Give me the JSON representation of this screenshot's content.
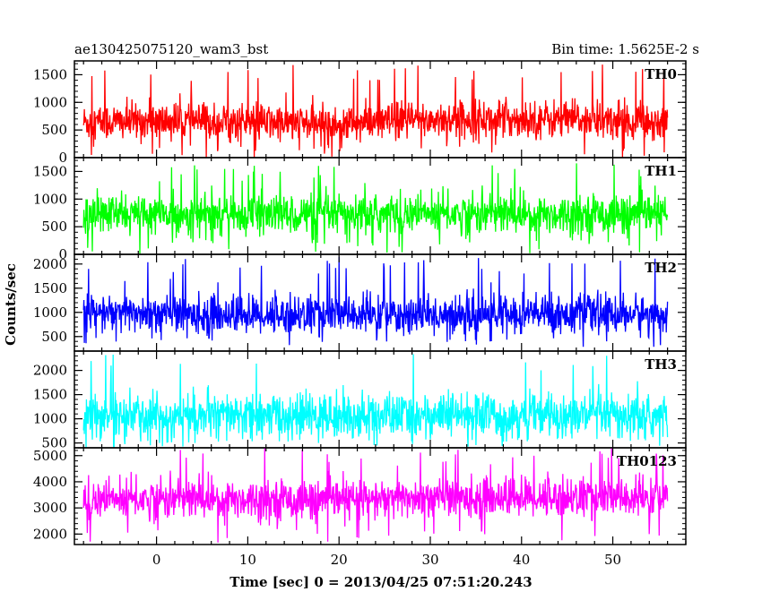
{
  "chart_data": {
    "type": "line",
    "title": "ae130425075120_wam3_bst",
    "subtitle": "Bin time: 1.5625E-2 s",
    "xlabel": "Time [sec] 0 = 2013/04/25 07:51:20.243",
    "ylabel": "Counts/sec",
    "xlim": [
      -9,
      58
    ],
    "xticks": [
      0,
      10,
      20,
      30,
      40,
      50
    ],
    "data_x_range": [
      -8,
      56
    ],
    "grid": false,
    "panels": [
      {
        "name": "TH0",
        "color": "#ff0000",
        "ylim": [
          0,
          1750
        ],
        "yticks": [
          0,
          500,
          1000,
          1500
        ],
        "baseline": 650,
        "noise": 170,
        "spike_max": 1700,
        "dip_min": 0,
        "vmin": 0,
        "vmax": 1750,
        "levels": [
          [
            -8,
            640
          ],
          [
            0,
            660
          ],
          [
            10,
            640
          ],
          [
            20,
            600
          ],
          [
            30,
            690
          ],
          [
            40,
            700
          ],
          [
            50,
            680
          ],
          [
            56,
            640
          ]
        ]
      },
      {
        "name": "TH1",
        "color": "#00ff00",
        "ylim": [
          0,
          1750
        ],
        "yticks": [
          0,
          500,
          1000,
          1500
        ],
        "baseline": 720,
        "noise": 180,
        "spike_max": 1650,
        "dip_min": 10,
        "vmin": 0,
        "vmax": 1750,
        "levels": [
          [
            -8,
            730
          ],
          [
            0,
            720
          ],
          [
            10,
            720
          ],
          [
            20,
            720
          ],
          [
            30,
            740
          ],
          [
            40,
            730
          ],
          [
            50,
            730
          ],
          [
            56,
            720
          ]
        ]
      },
      {
        "name": "TH2",
        "color": "#0000ff",
        "ylim": [
          200,
          2200
        ],
        "yticks": [
          500,
          1000,
          1500,
          2000
        ],
        "baseline": 960,
        "noise": 200,
        "spike_max": 2150,
        "dip_min": 280,
        "vmin": 200,
        "vmax": 2200,
        "levels": [
          [
            -8,
            1000
          ],
          [
            0,
            980
          ],
          [
            10,
            950
          ],
          [
            20,
            960
          ],
          [
            30,
            940
          ],
          [
            40,
            970
          ],
          [
            50,
            960
          ],
          [
            56,
            960
          ]
        ]
      },
      {
        "name": "TH3",
        "color": "#00ffff",
        "ylim": [
          400,
          2400
        ],
        "yticks": [
          500,
          1000,
          1500,
          2000
        ],
        "baseline": 1060,
        "noise": 230,
        "spike_max": 2400,
        "dip_min": 420,
        "vmin": 400,
        "vmax": 2400,
        "levels": [
          [
            -8,
            1050
          ],
          [
            0,
            1070
          ],
          [
            10,
            1060
          ],
          [
            20,
            1050
          ],
          [
            30,
            1070
          ],
          [
            40,
            1060
          ],
          [
            50,
            1060
          ],
          [
            56,
            1050
          ]
        ]
      },
      {
        "name": "TH0123",
        "color": "#ff00ff",
        "ylim": [
          1600,
          5300
        ],
        "yticks": [
          2000,
          3000,
          4000,
          5000
        ],
        "baseline": 3350,
        "noise": 380,
        "spike_max": 5300,
        "dip_min": 1650,
        "vmin": 1600,
        "vmax": 5300,
        "levels": [
          [
            -8,
            3300
          ],
          [
            0,
            3350
          ],
          [
            10,
            3350
          ],
          [
            20,
            3300
          ],
          [
            30,
            3400
          ],
          [
            40,
            3420
          ],
          [
            50,
            3400
          ],
          [
            56,
            3350
          ]
        ]
      }
    ]
  }
}
